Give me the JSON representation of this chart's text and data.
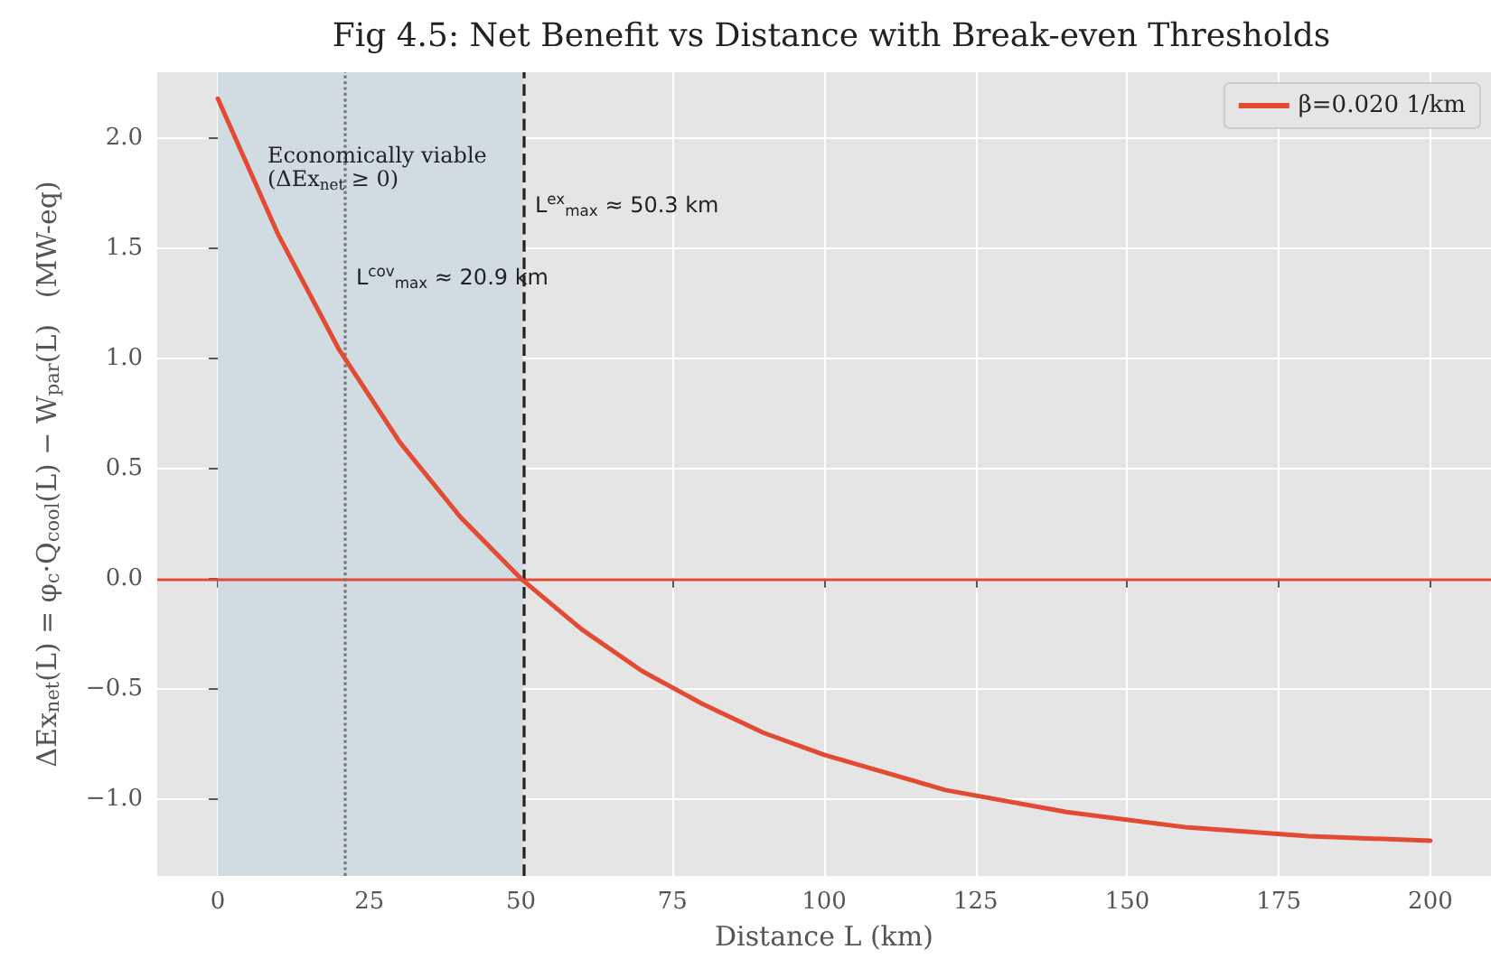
{
  "chart_data": {
    "type": "line",
    "title": "Fig 4.5: Net Benefit vs Distance with Break-even Thresholds",
    "xlabel": "Distance L (km)",
    "ylabel": "ΔEx$_{net}$(L) = φ$_{c}$·Q$_{cool}$(L) − W$_{par}$(L)   (MW-eq)",
    "x": [
      0,
      10,
      20,
      30,
      40,
      50,
      60,
      70,
      80,
      90,
      100,
      120,
      140,
      160,
      180,
      200
    ],
    "series": [
      {
        "name": "β=0.020 1/km",
        "color": "#e24a33",
        "values": [
          2.18,
          1.56,
          1.04,
          0.62,
          0.28,
          0.0,
          -0.23,
          -0.42,
          -0.57,
          -0.7,
          -0.8,
          -0.96,
          -1.06,
          -1.13,
          -1.17,
          -1.19
        ]
      }
    ],
    "xlim": [
      -10,
      210
    ],
    "xticks": [
      0,
      25,
      50,
      75,
      100,
      125,
      150,
      175,
      200
    ],
    "ylim": [
      -1.35,
      2.3
    ],
    "yticks": [
      {
        "value": -1,
        "label": "−1.0"
      },
      {
        "value": -0.5,
        "label": "−0.5"
      },
      {
        "value": 0,
        "label": "0.0"
      },
      {
        "value": 0.5,
        "label": "0.5"
      },
      {
        "value": 1,
        "label": "1.0"
      },
      {
        "value": 1.5,
        "label": "1.5"
      },
      {
        "value": 2,
        "label": "2.0"
      }
    ],
    "ref_lines": [
      {
        "axis": "y",
        "value": 0,
        "color": "#e24a33",
        "line_style": "solid"
      },
      {
        "axis": "x",
        "value": 20.9,
        "color": "#777777",
        "line_style": "dotted"
      },
      {
        "axis": "x",
        "value": 50.3,
        "color": "#222222",
        "line_style": "dashed"
      }
    ],
    "bands": [
      {
        "axis": "x",
        "from": 0,
        "to": 50.3,
        "color": "#d1dbe2"
      }
    ],
    "annotations": [
      "Economically viable\n(ΔEx$_{net}$ ≥ 0)",
      "L$^{cov}$$_{max}$ ≈ 20.9 km",
      "L$^{ex}$$_{max}$ ≈ 50.3 km"
    ],
    "grid": true,
    "legend": "top right",
    "marker": "none",
    "line_style": "solid"
  }
}
